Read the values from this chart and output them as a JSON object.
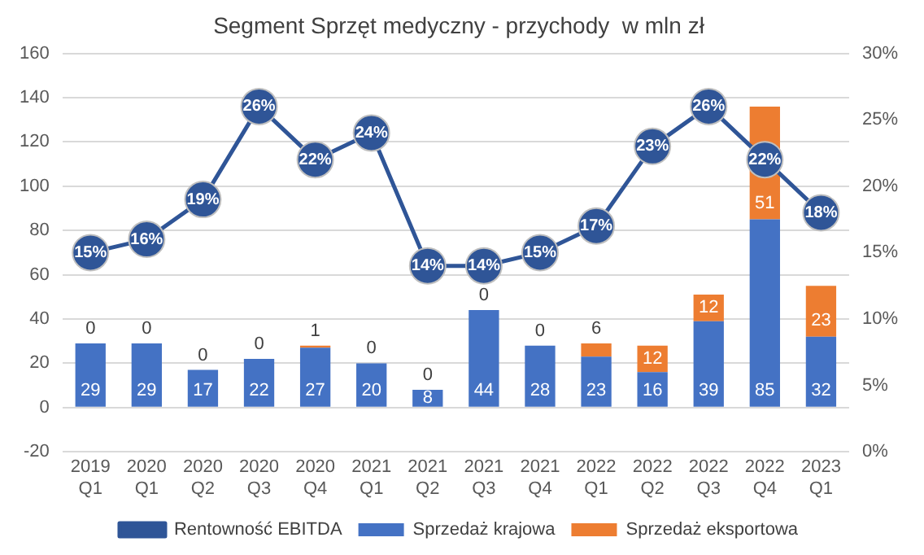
{
  "chart_data": {
    "type": "bar",
    "title": "Segment Sprzęt medyczny - przychody  w mln zł",
    "stacked": true,
    "legend": "bottom",
    "grid": "y",
    "categories": [
      "2019 Q1",
      "2020 Q1",
      "2020 Q2",
      "2020 Q3",
      "2020 Q4",
      "2021 Q1",
      "2021 Q2",
      "2021 Q3",
      "2021 Q4",
      "2022 Q1",
      "2022 Q2",
      "2022 Q3",
      "2022 Q4",
      "2023 Q1"
    ],
    "ylim": [
      -20,
      160
    ],
    "yticks": [
      -20,
      0,
      20,
      40,
      60,
      80,
      100,
      120,
      140,
      160
    ],
    "y2lim": [
      0,
      30
    ],
    "y2ticks": [
      {
        "value": 0,
        "label": "0%"
      },
      {
        "value": 5,
        "label": "5%"
      },
      {
        "value": 10,
        "label": "10%"
      },
      {
        "value": 15,
        "label": "15%"
      },
      {
        "value": 20,
        "label": "20%"
      },
      {
        "value": 25,
        "label": "25%"
      },
      {
        "value": 30,
        "label": "30%"
      }
    ],
    "series": [
      {
        "name": "Sprzedaż krajowa",
        "color": "#4472c4",
        "values": [
          29,
          29,
          17,
          22,
          27,
          20,
          8,
          44,
          28,
          23,
          16,
          39,
          85,
          32
        ],
        "value_labels": [
          "29",
          "29",
          "17",
          "22",
          "27",
          "20",
          "8",
          "44",
          "28",
          "23",
          "16",
          "39",
          "85",
          "32"
        ]
      },
      {
        "name": "Sprzedaż eksportowa",
        "color": "#ed7d31",
        "values": [
          0,
          0,
          0,
          0,
          1,
          0,
          0,
          0,
          0,
          6,
          12,
          12,
          51,
          23
        ],
        "value_labels": [
          "0",
          "0",
          "0",
          "0",
          "1",
          "0",
          "0",
          "0",
          "0",
          "6",
          "12",
          "12",
          "51",
          "23"
        ]
      },
      {
        "name": "Rentowność EBITDA",
        "type": "line",
        "axis": "y2",
        "color": "#2f5597",
        "marker": "circle",
        "values": [
          15,
          16,
          19,
          26,
          22,
          24,
          14,
          14,
          15,
          17,
          23,
          26,
          22,
          18
        ],
        "value_labels": [
          "15%",
          "16%",
          "19%",
          "26%",
          "22%",
          "24%",
          "14%",
          "14%",
          "15%",
          "17%",
          "23%",
          "26%",
          "22%",
          "18%"
        ]
      }
    ]
  }
}
